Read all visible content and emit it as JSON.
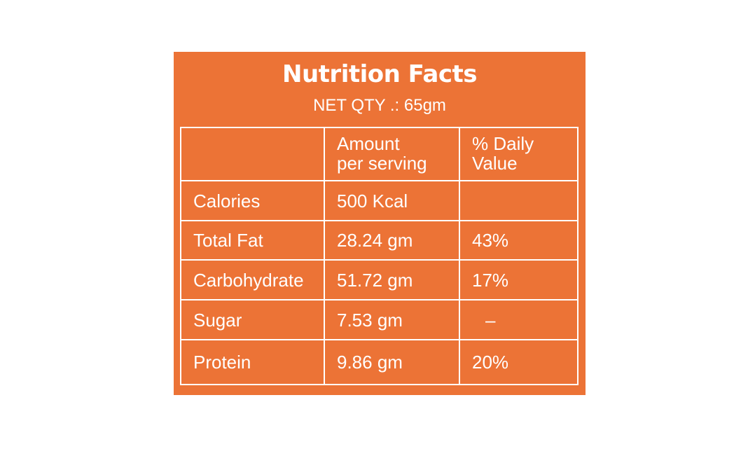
{
  "panel": {
    "title": "Nutrition Facts",
    "net_qty": "NET QTY .: 65gm",
    "background_color": "#ec7336",
    "text_color": "#ffffff"
  },
  "table": {
    "header": {
      "nutrient": "",
      "amount_line1": "Amount",
      "amount_line2": "per serving",
      "daily_line1": "% Daily",
      "daily_line2": "Value"
    },
    "rows": [
      {
        "nutrient": "Calories",
        "amount": "500 Kcal",
        "daily_value": ""
      },
      {
        "nutrient": "Total Fat",
        "amount": "28.24 gm",
        "daily_value": "43%"
      },
      {
        "nutrient": "Carbohydrate",
        "amount": "51.72 gm",
        "daily_value": "17%"
      },
      {
        "nutrient": "Sugar",
        "amount": "7.53 gm",
        "daily_value": "–"
      },
      {
        "nutrient": "Protein",
        "amount": "9.86 gm",
        "daily_value": "20%"
      }
    ]
  }
}
